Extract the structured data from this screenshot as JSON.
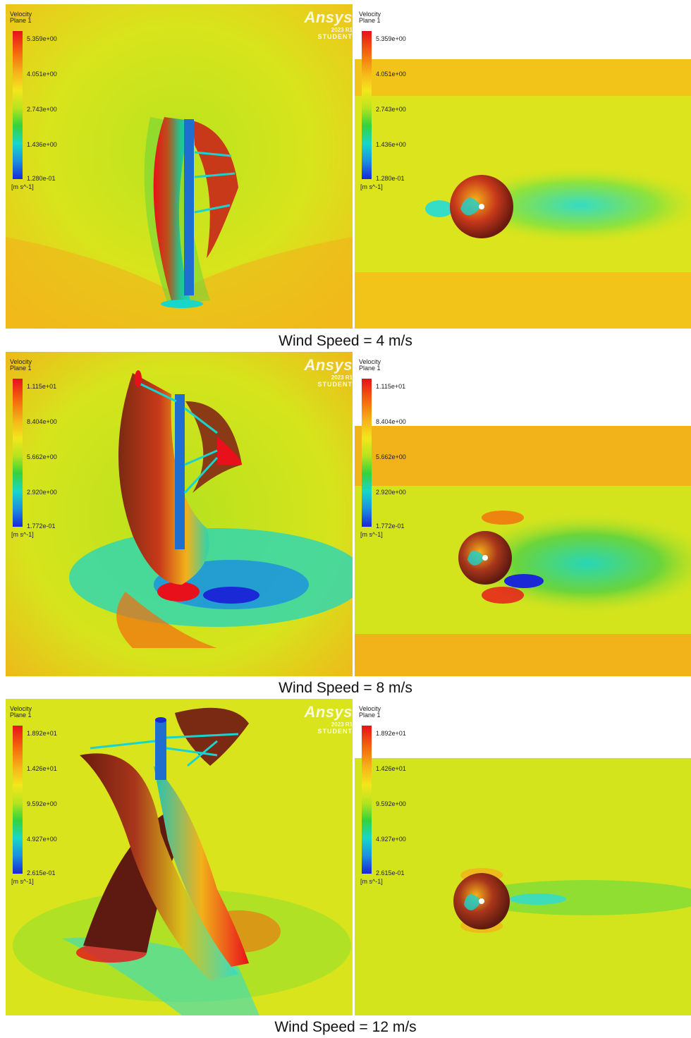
{
  "legend_title": [
    "Velocity",
    "Plane 1"
  ],
  "legend_unit": "[m s^-1]",
  "brand": {
    "name": "Ansys",
    "version": "2023 R1",
    "edition": "STUDENT"
  },
  "rows": [
    {
      "caption": "Wind Speed = 4 m/s",
      "ticks": [
        "5.359e+00",
        "4.051e+00",
        "2.743e+00",
        "1.436e+00",
        "1.280e-01"
      ]
    },
    {
      "caption": "Wind Speed = 8 m/s",
      "ticks": [
        "1.115e+01",
        "8.404e+00",
        "5.662e+00",
        "2.920e+00",
        "1.772e-01"
      ]
    },
    {
      "caption": "Wind Speed = 12 m/s",
      "ticks": [
        "1.892e+01",
        "1.426e+01",
        "9.592e+00",
        "4.927e+00",
        "2.615e-01"
      ]
    }
  ],
  "colors": {
    "fast": "#e8101a",
    "mid": "#f4e61c",
    "slow": "#1a28d6",
    "background": "#d9e41c"
  }
}
